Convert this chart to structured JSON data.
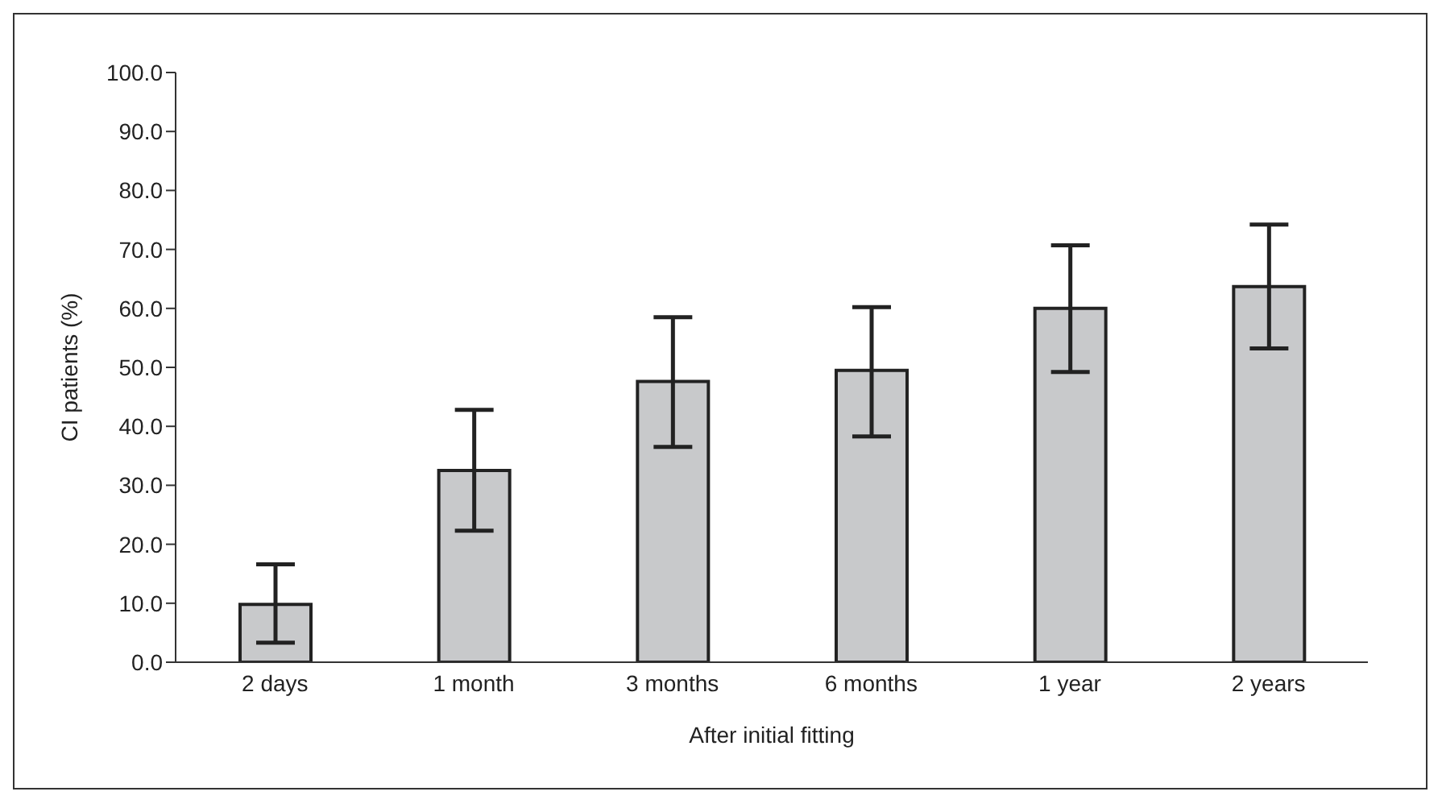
{
  "chart_data": {
    "type": "bar",
    "xlabel": "After initial fitting",
    "ylabel": "CI patients (%)",
    "categories": [
      "2 days",
      "1 month",
      "3 months",
      "6 months",
      "1 year",
      "2 years"
    ],
    "values": [
      9.8,
      32.5,
      47.6,
      49.5,
      60.0,
      63.7
    ],
    "errors": [
      [
        3.3,
        16.6
      ],
      [
        22.3,
        42.8
      ],
      [
        36.5,
        58.5
      ],
      [
        38.3,
        60.2
      ],
      [
        49.2,
        70.7
      ],
      [
        53.2,
        74.2
      ]
    ],
    "color": "#c8c9cb",
    "ylim": [
      0,
      100
    ],
    "yticks": [
      {
        "value": 0,
        "label": "0.0"
      },
      {
        "value": 10,
        "label": "10.0"
      },
      {
        "value": 20,
        "label": "20.0"
      },
      {
        "value": 30,
        "label": "30.0"
      },
      {
        "value": 40,
        "label": "40.0"
      },
      {
        "value": 50,
        "label": "50.0"
      },
      {
        "value": 60,
        "label": "60.0"
      },
      {
        "value": 70,
        "label": "70.0"
      },
      {
        "value": 80,
        "label": "80.0"
      },
      {
        "value": 90,
        "label": "90.0"
      },
      {
        "value": 100,
        "label": "100.0"
      }
    ],
    "grid": false,
    "legend": false
  }
}
